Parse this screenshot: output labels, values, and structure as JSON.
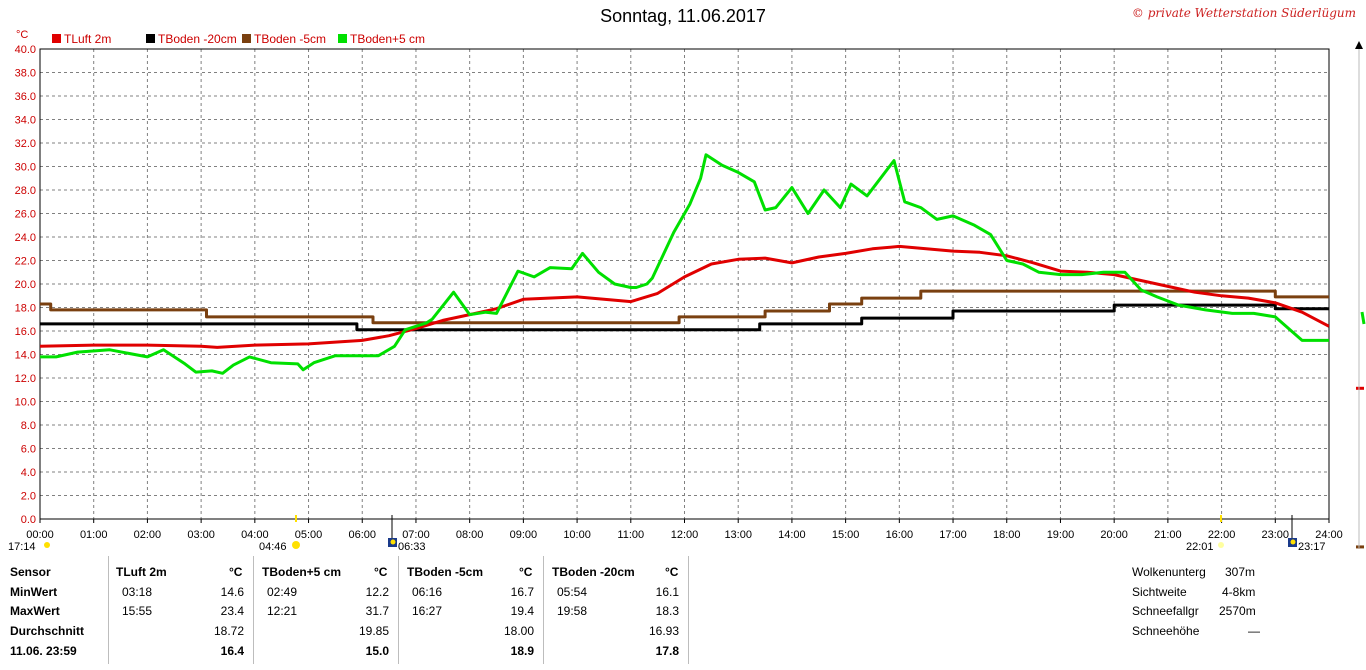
{
  "page": {
    "title": "Sonntag, 11.06.2017",
    "copyright": "© private Wetterstation Süderlügum"
  },
  "colors": {
    "tluft": "#e00000",
    "tboden20": "#000000",
    "tboden5": "#7a4010",
    "tbodenplus5": "#00e000",
    "grid": "#808080",
    "sun": "#ffe000"
  },
  "chart_data": {
    "type": "line",
    "xlabel": "",
    "ylabel": "°C",
    "ylim": [
      0,
      40
    ],
    "y_ticks": [
      "0.0",
      "2.0",
      "4.0",
      "6.0",
      "8.0",
      "10.0",
      "12.0",
      "14.0",
      "16.0",
      "18.0",
      "20.0",
      "22.0",
      "24.0",
      "26.0",
      "28.0",
      "30.0",
      "32.0",
      "34.0",
      "36.0",
      "38.0",
      "40.0"
    ],
    "x_ticks": [
      "00:00",
      "01:00",
      "02:00",
      "03:00",
      "04:00",
      "05:00",
      "06:00",
      "07:00",
      "08:00",
      "09:00",
      "10:00",
      "11:00",
      "12:00",
      "13:00",
      "14:00",
      "15:00",
      "16:00",
      "17:00",
      "18:00",
      "19:00",
      "20:00",
      "21:00",
      "22:00",
      "23:00",
      "24:00"
    ],
    "grid": true,
    "legend": "top-left",
    "series": [
      {
        "name": "TLuft 2m",
        "color": "#e00000",
        "x": [
          0,
          1,
          2,
          3,
          3.3,
          4,
          5,
          6,
          6.5,
          7,
          7.5,
          8,
          8.5,
          9,
          10,
          10.5,
          11,
          11.5,
          12,
          12.5,
          13,
          13.5,
          14,
          14.5,
          15,
          15.5,
          16,
          16.5,
          17,
          17.5,
          18,
          18.5,
          19,
          19.5,
          20,
          20.5,
          21,
          21.5,
          22,
          22.5,
          23,
          23.5,
          24
        ],
        "y": [
          14.7,
          14.8,
          14.8,
          14.7,
          14.6,
          14.8,
          14.9,
          15.2,
          15.6,
          16.2,
          16.9,
          17.4,
          17.9,
          18.7,
          18.9,
          18.7,
          18.5,
          19.2,
          20.6,
          21.7,
          22.1,
          22.2,
          21.8,
          22.3,
          22.6,
          23.0,
          23.2,
          23.0,
          22.8,
          22.7,
          22.4,
          21.8,
          21.1,
          21.0,
          20.8,
          20.3,
          19.8,
          19.3,
          19.0,
          18.8,
          18.4,
          17.6,
          16.4
        ]
      },
      {
        "name": "TBoden -20cm",
        "color": "#000000",
        "x": [
          0,
          5.9,
          5.9,
          12.0,
          12.0,
          13.4,
          13.4,
          15.3,
          15.3,
          17.0,
          17.0,
          20.0,
          20.0,
          23.0,
          23.0,
          24
        ],
        "y": [
          16.6,
          16.6,
          16.1,
          16.1,
          16.1,
          16.1,
          16.6,
          16.6,
          17.1,
          17.1,
          17.7,
          17.7,
          18.2,
          18.2,
          17.9,
          17.9
        ]
      },
      {
        "name": "TBoden -5cm",
        "color": "#7a4010",
        "x": [
          0,
          0.2,
          0.2,
          3.1,
          3.1,
          6.2,
          6.2,
          11.9,
          11.9,
          13.5,
          13.5,
          14.7,
          14.7,
          15.3,
          15.3,
          16.4,
          16.4,
          20.0,
          20.0,
          23.0,
          23.0,
          24
        ],
        "y": [
          18.3,
          18.3,
          17.8,
          17.8,
          17.2,
          17.2,
          16.7,
          16.7,
          17.2,
          17.2,
          17.7,
          17.7,
          18.3,
          18.3,
          18.8,
          18.8,
          19.4,
          19.4,
          19.4,
          19.4,
          18.9,
          18.9
        ]
      },
      {
        "name": "TBoden+5 cm",
        "color": "#00e000",
        "x": [
          0,
          0.3,
          0.7,
          1.3,
          2.0,
          2.3,
          2.7,
          2.9,
          3.2,
          3.4,
          3.6,
          3.9,
          4.3,
          4.8,
          4.9,
          5.1,
          5.5,
          5.9,
          6.3,
          6.6,
          6.8,
          7.2,
          7.3,
          7.7,
          8.0,
          8.3,
          8.5,
          8.9,
          9.2,
          9.5,
          9.9,
          10.1,
          10.4,
          10.7,
          11.0,
          11.1,
          11.3,
          11.4,
          11.8,
          12.1,
          12.3,
          12.4,
          12.7,
          13.0,
          13.3,
          13.5,
          13.7,
          14.0,
          14.3,
          14.6,
          14.9,
          15.1,
          15.4,
          15.6,
          15.9,
          16.1,
          16.4,
          16.7,
          17.0,
          17.4,
          17.7,
          18.0,
          18.3,
          18.6,
          19.0,
          19.4,
          19.8,
          20.2,
          20.5,
          20.8,
          21.2,
          21.7,
          22.2,
          22.6,
          23.0,
          23.5,
          24
        ],
        "y": [
          13.8,
          13.8,
          14.2,
          14.4,
          13.8,
          14.4,
          13.2,
          12.5,
          12.6,
          12.4,
          13.1,
          13.8,
          13.3,
          13.2,
          12.7,
          13.3,
          13.9,
          13.9,
          13.9,
          14.7,
          16.1,
          16.7,
          17.0,
          19.3,
          17.4,
          17.6,
          17.5,
          21.1,
          20.6,
          21.4,
          21.3,
          22.6,
          21.0,
          20.0,
          19.7,
          19.7,
          20.0,
          20.5,
          24.4,
          26.8,
          29.0,
          31.0,
          30.1,
          29.5,
          28.7,
          26.3,
          26.5,
          28.2,
          26.0,
          28.0,
          26.5,
          28.5,
          27.5,
          28.7,
          30.5,
          27.0,
          26.5,
          25.5,
          25.8,
          25.0,
          24.2,
          22.0,
          21.7,
          21.0,
          20.8,
          20.8,
          21.0,
          21.0,
          19.5,
          18.9,
          18.2,
          17.8,
          17.5,
          17.5,
          17.2,
          15.2,
          15.2
        ]
      }
    ]
  },
  "markers": {
    "left": [
      "17:14",
      "04:46"
    ],
    "right": [
      "06:33",
      "22:01",
      "23:17"
    ]
  },
  "stats": {
    "row_labels": [
      "Sensor",
      "MinWert",
      "MaxWert",
      "Durchschnitt",
      "11.06. 23:59"
    ],
    "unit": "°C",
    "groups": [
      {
        "name": "TLuft 2m",
        "min_time": "03:18",
        "min_val": "14.6",
        "max_time": "15:55",
        "max_val": "23.4",
        "avg": "18.72",
        "last": "16.4"
      },
      {
        "name": "TBoden+5 cm",
        "min_time": "02:49",
        "min_val": "12.2",
        "max_time": "12:21",
        "max_val": "31.7",
        "avg": "19.85",
        "last": "15.0"
      },
      {
        "name": "TBoden -5cm",
        "min_time": "06:16",
        "min_val": "16.7",
        "max_time": "16:27",
        "max_val": "19.4",
        "avg": "18.00",
        "last": "18.9"
      },
      {
        "name": "TBoden -20cm",
        "min_time": "05:54",
        "min_val": "16.1",
        "max_time": "19:58",
        "max_val": "18.3",
        "avg": "16.93",
        "last": "17.8"
      }
    ],
    "extra": [
      {
        "label": "Wolkenunterg",
        "value": "307m"
      },
      {
        "label": "Sichtweite",
        "value": "4-8km"
      },
      {
        "label": "Schneefallgr",
        "value": "2570m"
      },
      {
        "label": "Schneehöhe",
        "value": "—"
      }
    ]
  }
}
